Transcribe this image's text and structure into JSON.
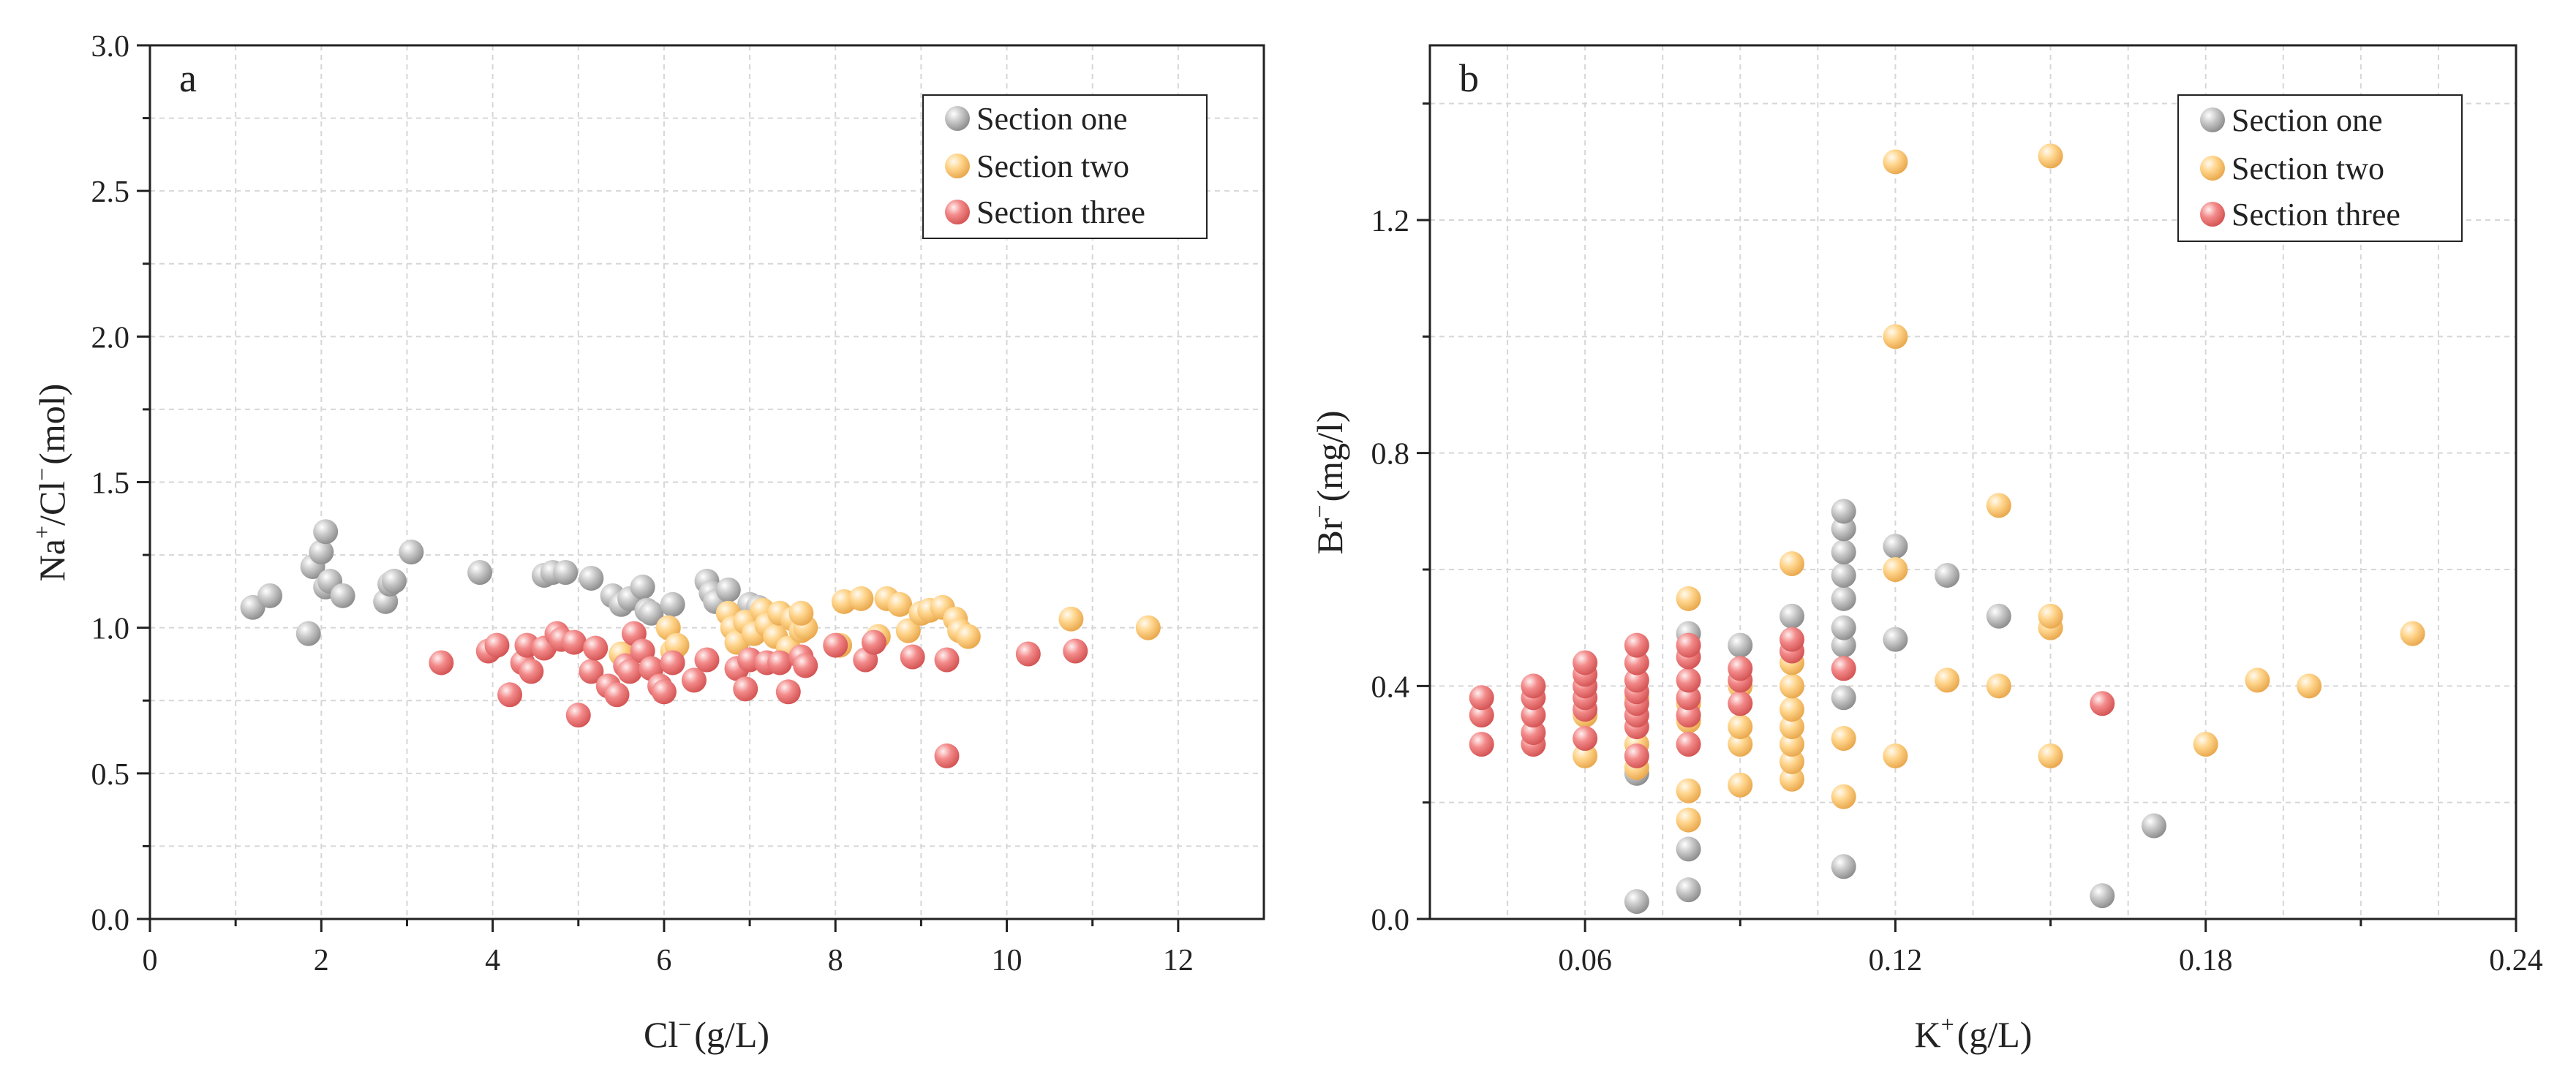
{
  "colors": {
    "section_one": "#b7b7b7",
    "section_two": "#ffd58c",
    "section_three": "#f38a8a"
  },
  "chart_data": [
    {
      "type": "scatter",
      "panel": "a",
      "xlabel_main": "Cl",
      "xlabel_sup": "−",
      "xlabel_unit": "(g/L)",
      "ylabel_na": "Na",
      "ylabel_na_sup": "+",
      "ylabel_cl": "/Cl",
      "ylabel_cl_sup": "−",
      "ylabel_unit": "(mol)",
      "xlim": [
        0,
        13
      ],
      "ylim": [
        0,
        3.0
      ],
      "xticks": [
        "0",
        "2",
        "4",
        "6",
        "8",
        "10",
        "12"
      ],
      "yticks": [
        "0.0",
        "0.5",
        "1.0",
        "1.5",
        "2.0",
        "2.5",
        "3.0"
      ],
      "grid": true,
      "legend_position": "top-right",
      "series": [
        {
          "name": "Section one",
          "color_key": "section_one",
          "points": [
            [
              1.2,
              1.07
            ],
            [
              1.4,
              1.11
            ],
            [
              1.85,
              0.98
            ],
            [
              1.9,
              1.21
            ],
            [
              2.0,
              1.26
            ],
            [
              2.05,
              1.33
            ],
            [
              2.05,
              1.14
            ],
            [
              2.1,
              1.16
            ],
            [
              2.25,
              1.11
            ],
            [
              2.75,
              1.09
            ],
            [
              2.8,
              1.15
            ],
            [
              2.85,
              1.16
            ],
            [
              3.05,
              1.26
            ],
            [
              3.85,
              1.19
            ],
            [
              4.6,
              1.18
            ],
            [
              4.7,
              1.19
            ],
            [
              4.85,
              1.19
            ],
            [
              5.15,
              1.17
            ],
            [
              5.4,
              1.11
            ],
            [
              5.5,
              1.08
            ],
            [
              5.6,
              1.1
            ],
            [
              5.75,
              1.14
            ],
            [
              5.8,
              1.06
            ],
            [
              5.85,
              1.05
            ],
            [
              6.1,
              1.08
            ],
            [
              6.5,
              1.16
            ],
            [
              6.55,
              1.12
            ],
            [
              6.6,
              1.09
            ],
            [
              6.75,
              1.13
            ],
            [
              7.0,
              1.08
            ],
            [
              7.1,
              1.07
            ]
          ]
        },
        {
          "name": "Section two",
          "color_key": "section_two",
          "points": [
            [
              5.5,
              0.91
            ],
            [
              6.05,
              1.0
            ],
            [
              6.1,
              0.92
            ],
            [
              6.15,
              0.94
            ],
            [
              6.75,
              1.05
            ],
            [
              6.8,
              1.0
            ],
            [
              6.85,
              0.95
            ],
            [
              6.95,
              1.02
            ],
            [
              7.05,
              0.98
            ],
            [
              7.15,
              1.06
            ],
            [
              7.2,
              1.01
            ],
            [
              7.3,
              0.97
            ],
            [
              7.35,
              1.05
            ],
            [
              7.45,
              0.93
            ],
            [
              7.5,
              1.03
            ],
            [
              7.6,
              0.99
            ],
            [
              7.65,
              1.0
            ],
            [
              7.6,
              1.05
            ],
            [
              8.05,
              0.94
            ],
            [
              8.1,
              1.09
            ],
            [
              8.3,
              1.1
            ],
            [
              8.5,
              0.97
            ],
            [
              8.6,
              1.1
            ],
            [
              8.75,
              1.08
            ],
            [
              8.85,
              0.99
            ],
            [
              9.0,
              1.05
            ],
            [
              9.1,
              1.06
            ],
            [
              9.25,
              1.07
            ],
            [
              9.4,
              1.03
            ],
            [
              9.45,
              0.99
            ],
            [
              9.55,
              0.97
            ],
            [
              10.75,
              1.03
            ],
            [
              11.65,
              1.0
            ]
          ]
        },
        {
          "name": "Section three",
          "color_key": "section_three",
          "points": [
            [
              3.4,
              0.88
            ],
            [
              3.95,
              0.92
            ],
            [
              4.05,
              0.94
            ],
            [
              4.2,
              0.77
            ],
            [
              4.35,
              0.88
            ],
            [
              4.4,
              0.94
            ],
            [
              4.45,
              0.85
            ],
            [
              4.6,
              0.93
            ],
            [
              4.75,
              0.98
            ],
            [
              4.8,
              0.96
            ],
            [
              4.95,
              0.95
            ],
            [
              5.0,
              0.7
            ],
            [
              5.15,
              0.85
            ],
            [
              5.2,
              0.93
            ],
            [
              5.35,
              0.8
            ],
            [
              5.45,
              0.77
            ],
            [
              5.55,
              0.87
            ],
            [
              5.6,
              0.85
            ],
            [
              5.65,
              0.98
            ],
            [
              5.75,
              0.92
            ],
            [
              5.85,
              0.86
            ],
            [
              5.95,
              0.8
            ],
            [
              6.0,
              0.78
            ],
            [
              6.1,
              0.88
            ],
            [
              6.35,
              0.82
            ],
            [
              6.5,
              0.89
            ],
            [
              6.85,
              0.86
            ],
            [
              6.95,
              0.79
            ],
            [
              7.0,
              0.89
            ],
            [
              7.2,
              0.88
            ],
            [
              7.35,
              0.88
            ],
            [
              7.45,
              0.78
            ],
            [
              7.6,
              0.9
            ],
            [
              7.65,
              0.87
            ],
            [
              8.0,
              0.94
            ],
            [
              8.35,
              0.89
            ],
            [
              8.45,
              0.95
            ],
            [
              8.9,
              0.9
            ],
            [
              9.3,
              0.89
            ],
            [
              9.3,
              0.56
            ],
            [
              10.25,
              0.91
            ],
            [
              10.8,
              0.92
            ]
          ]
        }
      ]
    },
    {
      "type": "scatter",
      "panel": "b",
      "xlabel_main": "K",
      "xlabel_sup": "+",
      "xlabel_unit": "(g/L)",
      "ylabel_main": "Br",
      "ylabel_sup": "−",
      "ylabel_unit": "(mg/l)",
      "xlim": [
        0.03,
        0.24
      ],
      "ylim": [
        0,
        1.5
      ],
      "xticks": [
        "0.06",
        "0.12",
        "0.18",
        "0.24"
      ],
      "yticks": [
        "0.0",
        "0.4",
        "0.8",
        "1.2"
      ],
      "grid": true,
      "legend_position": "top-right",
      "series": [
        {
          "name": "Section one",
          "color_key": "section_one",
          "points": [
            [
              0.07,
              0.03
            ],
            [
              0.07,
              0.25
            ],
            [
              0.08,
              0.05
            ],
            [
              0.08,
              0.12
            ],
            [
              0.08,
              0.49
            ],
            [
              0.09,
              0.47
            ],
            [
              0.1,
              0.52
            ],
            [
              0.11,
              0.09
            ],
            [
              0.11,
              0.38
            ],
            [
              0.11,
              0.47
            ],
            [
              0.11,
              0.5
            ],
            [
              0.11,
              0.55
            ],
            [
              0.11,
              0.59
            ],
            [
              0.11,
              0.63
            ],
            [
              0.11,
              0.67
            ],
            [
              0.11,
              0.7
            ],
            [
              0.12,
              0.48
            ],
            [
              0.12,
              0.64
            ],
            [
              0.13,
              0.59
            ],
            [
              0.14,
              0.52
            ],
            [
              0.16,
              0.04
            ],
            [
              0.17,
              0.16
            ]
          ]
        },
        {
          "name": "Section two",
          "color_key": "section_two",
          "points": [
            [
              0.06,
              0.28
            ],
            [
              0.06,
              0.35
            ],
            [
              0.07,
              0.26
            ],
            [
              0.07,
              0.3
            ],
            [
              0.07,
              0.38
            ],
            [
              0.08,
              0.17
            ],
            [
              0.08,
              0.22
            ],
            [
              0.08,
              0.34
            ],
            [
              0.08,
              0.37
            ],
            [
              0.08,
              0.55
            ],
            [
              0.09,
              0.23
            ],
            [
              0.09,
              0.3
            ],
            [
              0.09,
              0.33
            ],
            [
              0.09,
              0.37
            ],
            [
              0.09,
              0.4
            ],
            [
              0.1,
              0.24
            ],
            [
              0.1,
              0.27
            ],
            [
              0.1,
              0.3
            ],
            [
              0.1,
              0.33
            ],
            [
              0.1,
              0.36
            ],
            [
              0.1,
              0.4
            ],
            [
              0.1,
              0.44
            ],
            [
              0.1,
              0.61
            ],
            [
              0.11,
              0.21
            ],
            [
              0.11,
              0.31
            ],
            [
              0.12,
              0.28
            ],
            [
              0.12,
              0.6
            ],
            [
              0.12,
              1.0
            ],
            [
              0.12,
              1.3
            ],
            [
              0.13,
              0.41
            ],
            [
              0.14,
              0.4
            ],
            [
              0.14,
              0.71
            ],
            [
              0.15,
              0.28
            ],
            [
              0.15,
              0.5
            ],
            [
              0.15,
              0.52
            ],
            [
              0.15,
              1.31
            ],
            [
              0.18,
              0.3
            ],
            [
              0.19,
              0.41
            ],
            [
              0.2,
              0.4
            ],
            [
              0.22,
              0.49
            ]
          ]
        },
        {
          "name": "Section three",
          "color_key": "section_three",
          "points": [
            [
              0.04,
              0.3
            ],
            [
              0.04,
              0.35
            ],
            [
              0.04,
              0.38
            ],
            [
              0.05,
              0.3
            ],
            [
              0.05,
              0.32
            ],
            [
              0.05,
              0.35
            ],
            [
              0.05,
              0.38
            ],
            [
              0.05,
              0.4
            ],
            [
              0.06,
              0.31
            ],
            [
              0.06,
              0.36
            ],
            [
              0.06,
              0.38
            ],
            [
              0.06,
              0.4
            ],
            [
              0.06,
              0.42
            ],
            [
              0.06,
              0.44
            ],
            [
              0.07,
              0.28
            ],
            [
              0.07,
              0.33
            ],
            [
              0.07,
              0.35
            ],
            [
              0.07,
              0.37
            ],
            [
              0.07,
              0.39
            ],
            [
              0.07,
              0.41
            ],
            [
              0.07,
              0.44
            ],
            [
              0.07,
              0.47
            ],
            [
              0.08,
              0.3
            ],
            [
              0.08,
              0.35
            ],
            [
              0.08,
              0.38
            ],
            [
              0.08,
              0.41
            ],
            [
              0.08,
              0.45
            ],
            [
              0.08,
              0.47
            ],
            [
              0.09,
              0.37
            ],
            [
              0.09,
              0.41
            ],
            [
              0.09,
              0.43
            ],
            [
              0.1,
              0.46
            ],
            [
              0.1,
              0.48
            ],
            [
              0.11,
              0.43
            ],
            [
              0.16,
              0.37
            ]
          ]
        }
      ]
    }
  ]
}
